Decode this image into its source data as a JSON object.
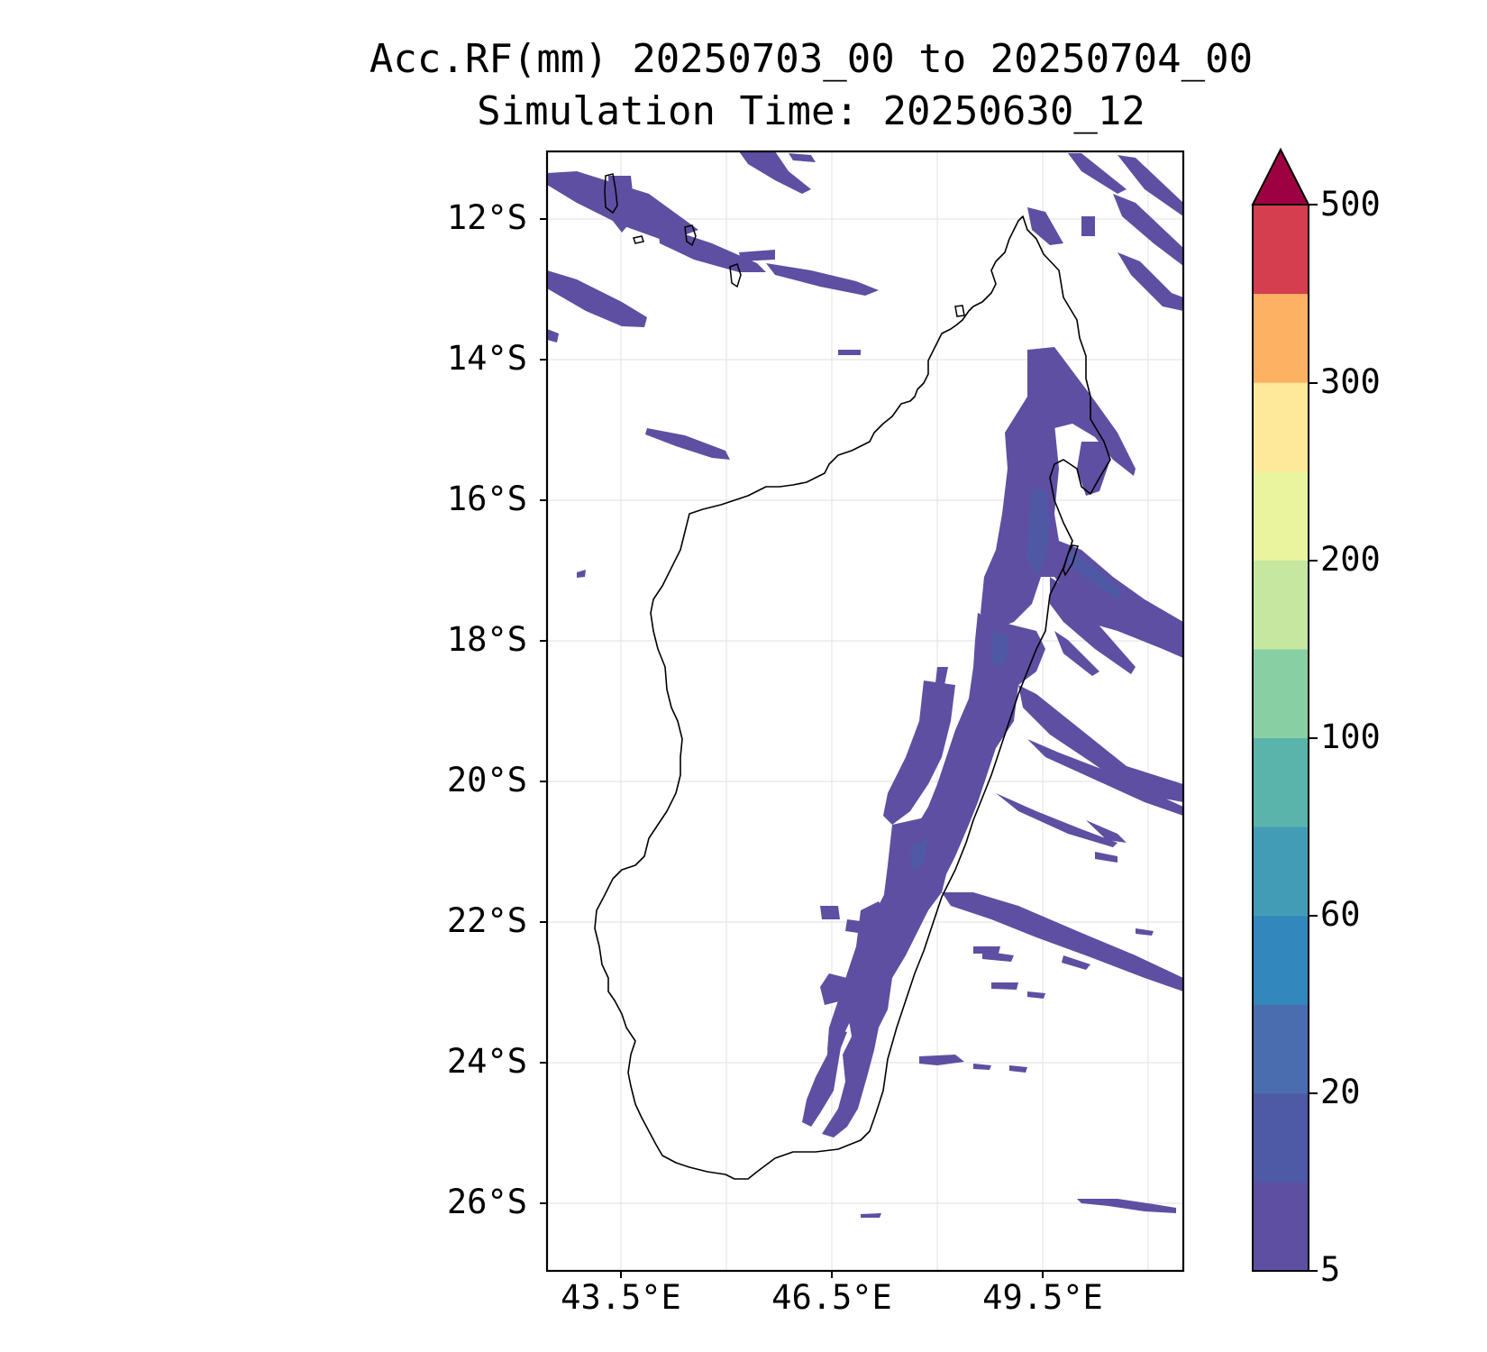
{
  "title": {
    "line1": "Acc.RF(mm) 20250703_00 to 20250704_00",
    "line2": "Simulation Time: 20250630_12"
  },
  "map": {
    "lat_ticks": [
      "12°S",
      "14°S",
      "16°S",
      "18°S",
      "20°S",
      "22°S",
      "24°S",
      "26°S"
    ],
    "lon_ticks": [
      "43.5°E",
      "46.5°E",
      "49.5°E"
    ],
    "extent": {
      "lon": [
        42.45,
        51.45
      ],
      "lat": [
        -27.0,
        -11.1
      ]
    },
    "rain_color": "#5e4fa2",
    "rain_color_dark": "#4e5aa6"
  },
  "colorbar": {
    "tick_labels": [
      "5",
      "20",
      "60",
      "100",
      "200",
      "300",
      "500"
    ],
    "colors": [
      "#5e4fa2",
      "#4e5aa6",
      "#4a6db0",
      "#3288bd",
      "#429cb6",
      "#5ab4ab",
      "#88cfa4",
      "#c5e79f",
      "#eaf49e",
      "#fee99a",
      "#fdb163",
      "#d53e4f"
    ],
    "extend_color": "#9e0142"
  }
}
